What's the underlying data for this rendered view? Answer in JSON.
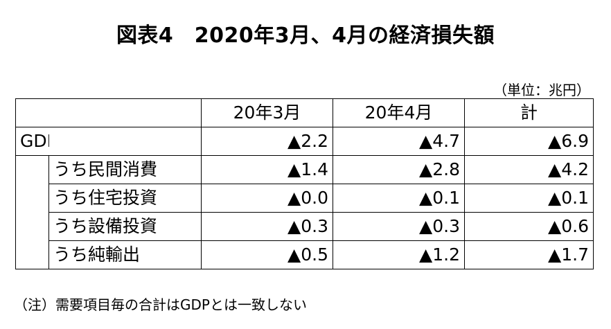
{
  "title": "図表4　2020年3月、4月の経済損失額",
  "unit": "（単位：兆円）",
  "table": {
    "headers": [
      "",
      "20年3月",
      "20年4月",
      "計"
    ],
    "gdp": {
      "label": "GDP",
      "values": [
        "▲2.2",
        "▲4.7",
        "▲6.9"
      ]
    },
    "sub_rows": [
      {
        "label": "うち民間消費",
        "values": [
          "▲1.4",
          "▲2.8",
          "▲4.2"
        ]
      },
      {
        "label": "うち住宅投資",
        "values": [
          "▲0.0",
          "▲0.1",
          "▲0.1"
        ]
      },
      {
        "label": "うち設備投資",
        "values": [
          "▲0.3",
          "▲0.3",
          "▲0.6"
        ]
      },
      {
        "label": "うち純輸出",
        "values": [
          "▲0.5",
          "▲1.2",
          "▲1.7"
        ]
      }
    ]
  },
  "note": "（注）需要項目毎の合計はGDPとは一致しない"
}
